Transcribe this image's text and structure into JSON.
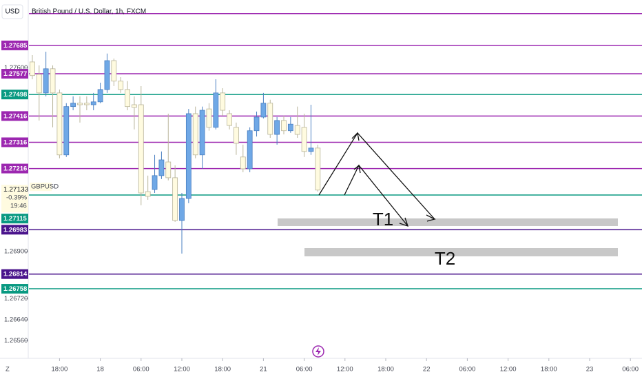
{
  "chart_data": {
    "type": "candlestick",
    "title": "British Pound / U.S. Dollar, 1h, FXCM",
    "currency": "USD",
    "footer": "Z",
    "up_color": "#6fa8e6",
    "down_color": "#fffbe0",
    "open": [
      1.27622,
      1.27575,
      1.27504,
      1.27596,
      1.27504,
      1.27268,
      1.27452,
      1.27465,
      1.27465,
      1.27459,
      1.2747,
      1.27517,
      1.27627,
      1.27549,
      1.27517,
      1.27459,
      1.27459,
      1.27128,
      1.27136,
      1.27189,
      1.27241,
      1.27181,
      1.27018,
      1.27102,
      1.27425,
      1.27268,
      1.27443,
      1.27373,
      1.27504,
      1.27425,
      1.27373,
      1.2726,
      1.27215,
      1.2736,
      1.27412,
      1.27465,
      1.27346,
      1.27399,
      1.2736,
      1.2738,
      1.27373,
      1.27281,
      1.27294
    ],
    "high": [
      1.27648,
      1.27609,
      1.27661,
      1.27609,
      1.27517,
      1.27465,
      1.27491,
      1.27491,
      1.27491,
      1.27504,
      1.27543,
      1.27654,
      1.27635,
      1.27564,
      1.27549,
      1.27491,
      1.2753,
      1.27189,
      1.27268,
      1.27281,
      1.27425,
      1.27228,
      1.27123,
      1.27443,
      1.27452,
      1.27452,
      1.27465,
      1.27556,
      1.27522,
      1.27438,
      1.27391,
      1.27307,
      1.27373,
      1.27433,
      1.27504,
      1.27478,
      1.27412,
      1.27417,
      1.27412,
      1.27452,
      1.27425,
      1.27459,
      1.27307
    ],
    "low": [
      1.27556,
      1.27399,
      1.27491,
      1.27373,
      1.27255,
      1.2726,
      1.27438,
      1.27391,
      1.27438,
      1.27438,
      1.27465,
      1.27504,
      1.2753,
      1.27504,
      1.27438,
      1.27365,
      1.27076,
      1.27097,
      1.27123,
      1.27176,
      1.27171,
      1.27013,
      1.26892,
      1.27084,
      1.27255,
      1.27215,
      1.2736,
      1.27365,
      1.27417,
      1.27365,
      1.27268,
      1.27202,
      1.27202,
      1.27338,
      1.27407,
      1.27333,
      1.27307,
      1.27346,
      1.27352,
      1.27333,
      1.2726,
      1.27268,
      1.27128
    ],
    "close": [
      1.2757,
      1.27504,
      1.27596,
      1.27504,
      1.27268,
      1.27452,
      1.27465,
      1.27459,
      1.27459,
      1.2747,
      1.27517,
      1.27627,
      1.27549,
      1.27517,
      1.27452,
      1.27449,
      1.27123,
      1.2711,
      1.27189,
      1.27249,
      1.27181,
      1.27018,
      1.27102,
      1.27425,
      1.27268,
      1.27438,
      1.27373,
      1.27504,
      1.27438,
      1.2738,
      1.27312,
      1.27215,
      1.2736,
      1.27412,
      1.27465,
      1.27346,
      1.27399,
      1.2736,
      1.27385,
      1.27346,
      1.27281,
      1.27294,
      1.27134
    ],
    "ylim": [
      1.26493,
      1.27858
    ],
    "yticks": [
      {
        "value": 1.276,
        "label": "1.27600"
      },
      {
        "value": 1.269,
        "label": "1.26900"
      },
      {
        "value": 1.2672,
        "label": "1.26720"
      },
      {
        "value": 1.2664,
        "label": "1.26640"
      },
      {
        "value": 1.2656,
        "label": "1.26560"
      }
    ],
    "xlim": [
      -0.5,
      89.5
    ],
    "xticks": [
      {
        "value": 4,
        "label": "18:00"
      },
      {
        "value": 10,
        "label": "18"
      },
      {
        "value": 16,
        "label": "06:00"
      },
      {
        "value": 22,
        "label": "12:00"
      },
      {
        "value": 28,
        "label": "18:00"
      },
      {
        "value": 34,
        "label": "21"
      },
      {
        "value": 40,
        "label": "06:00"
      },
      {
        "value": 46,
        "label": "12:00"
      },
      {
        "value": 52,
        "label": "18:00"
      },
      {
        "value": 58,
        "label": "22"
      },
      {
        "value": 64,
        "label": "06:00"
      },
      {
        "value": 70,
        "label": "12:00"
      },
      {
        "value": 76,
        "label": "18:00"
      },
      {
        "value": 82,
        "label": "23"
      },
      {
        "value": 88,
        "label": "06:00"
      }
    ],
    "extra_lines": [
      {
        "value": 1.27806,
        "color": "#9c27b0"
      }
    ],
    "levels": [
      {
        "value": 1.27685,
        "color": "#9c27b0"
      },
      {
        "value": 1.27577,
        "color": "#9c27b0"
      },
      {
        "value": 1.27498,
        "color": "#089981"
      },
      {
        "value": 1.27416,
        "color": "#9c27b0"
      },
      {
        "value": 1.27316,
        "color": "#9c27b0"
      },
      {
        "value": 1.27216,
        "color": "#9c27b0"
      },
      {
        "value": 1.27115,
        "color": "#089981"
      },
      {
        "value": 1.26983,
        "color": "#4a148c"
      },
      {
        "value": 1.26814,
        "color": "#4a148c"
      },
      {
        "value": 1.26758,
        "color": "#089981"
      }
    ],
    "current_price": {
      "value": 1.27133,
      "symbol": "GBPUSD",
      "change": "-0.39%",
      "countdown": "19:46"
    },
    "targets": [
      "T1",
      "T2"
    ]
  }
}
